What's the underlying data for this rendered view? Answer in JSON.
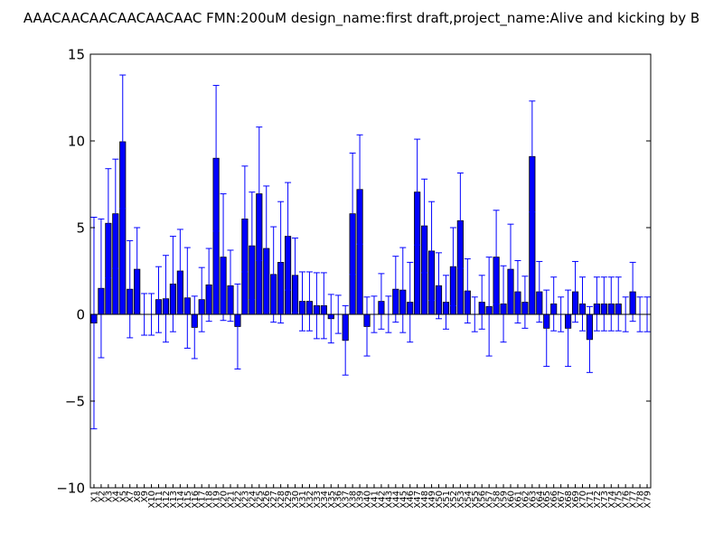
{
  "chart_data": {
    "type": "bar",
    "title": "AAACAACAACAACAACAAC  FMN:200uM  design_name:first draft,project_name:Alive and kicking by B",
    "xlabel": "",
    "ylabel": "",
    "ylim": [
      -10,
      15
    ],
    "yticks": [
      -10,
      -5,
      0,
      5,
      10,
      15
    ],
    "ytick_labels": [
      "−10",
      "−5",
      "0",
      "5",
      "10",
      "15"
    ],
    "grid": false,
    "bar_color": "#0000ff",
    "error_color": "#0000ff",
    "categories": [
      "X1",
      "X2",
      "X3",
      "X4",
      "X5",
      "X7",
      "X8",
      "X9",
      "X10",
      "X11",
      "X12",
      "X13",
      "X14",
      "X15",
      "X16",
      "X17",
      "X18",
      "X19",
      "X20",
      "X21",
      "X22",
      "X23",
      "X24",
      "X25",
      "X26",
      "X27",
      "X28",
      "X29",
      "X30",
      "X31",
      "X32",
      "X33",
      "X34",
      "X35",
      "X36",
      "X37",
      "X38",
      "X39",
      "X40",
      "X41",
      "X42",
      "X43",
      "X44",
      "X45",
      "X46",
      "X47",
      "X48",
      "X49",
      "X50",
      "X51",
      "X52",
      "X53",
      "X54",
      "X55",
      "X56",
      "X57",
      "X58",
      "X59",
      "X60",
      "X61",
      "X62",
      "X63",
      "X64",
      "X65",
      "X66",
      "X67",
      "X68",
      "X69",
      "X70",
      "X71",
      "X72",
      "X73",
      "X74",
      "X75",
      "X76",
      "X77",
      "X78",
      "X79"
    ],
    "values": [
      -0.5,
      1.5,
      5.25,
      5.8,
      9.95,
      1.45,
      2.6,
      0.0,
      0.0,
      0.85,
      0.9,
      1.75,
      2.5,
      0.95,
      -0.75,
      0.85,
      1.7,
      9.0,
      3.3,
      1.65,
      -0.7,
      5.5,
      3.95,
      6.95,
      3.8,
      2.3,
      3.0,
      4.5,
      2.25,
      0.75,
      0.75,
      0.5,
      0.5,
      -0.25,
      0.0,
      -1.5,
      5.8,
      7.2,
      -0.7,
      0.0,
      0.75,
      0.0,
      1.45,
      1.4,
      0.7,
      7.05,
      5.1,
      3.65,
      1.65,
      0.7,
      2.75,
      5.4,
      1.35,
      0.0,
      0.7,
      0.45,
      3.3,
      0.6,
      2.6,
      1.3,
      0.7,
      9.1,
      1.3,
      -0.8,
      0.6,
      0.0,
      -0.8,
      1.3,
      0.6,
      -1.45,
      0.6,
      0.6,
      0.6,
      0.6,
      0.0,
      1.3,
      0.0,
      0.0
    ],
    "errors": [
      6.1,
      4.0,
      3.15,
      3.15,
      3.85,
      2.8,
      2.4,
      1.2,
      1.2,
      1.9,
      2.5,
      2.75,
      2.4,
      2.9,
      1.8,
      1.85,
      2.1,
      4.2,
      3.65,
      2.05,
      2.45,
      3.05,
      3.1,
      3.85,
      3.6,
      2.75,
      3.5,
      3.1,
      2.15,
      1.7,
      1.7,
      1.9,
      1.9,
      1.4,
      1.1,
      2.0,
      3.5,
      3.15,
      1.7,
      1.05,
      1.6,
      1.05,
      1.9,
      2.45,
      2.3,
      3.05,
      2.7,
      2.85,
      1.9,
      1.55,
      2.25,
      2.75,
      1.85,
      1.0,
      1.55,
      2.85,
      2.7,
      2.2,
      2.6,
      1.8,
      1.5,
      3.2,
      1.75,
      2.2,
      1.55,
      1.0,
      2.2,
      1.75,
      1.55,
      1.9,
      1.55,
      1.55,
      1.55,
      1.55,
      1.0,
      1.7,
      1.0,
      1.0
    ]
  }
}
